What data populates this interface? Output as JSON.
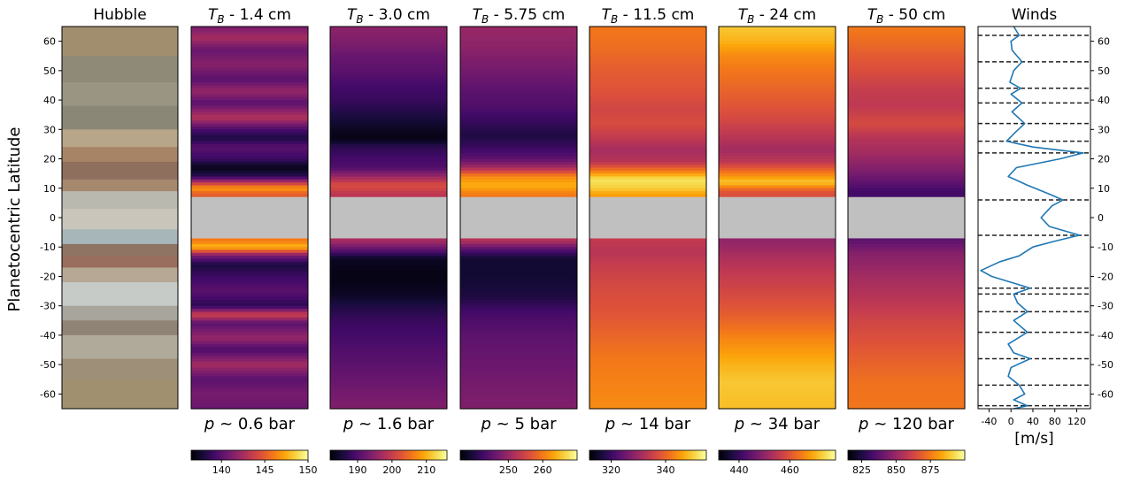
{
  "figure": {
    "ylabel": "Planetocentric Latitude",
    "ylim": [
      -65,
      65
    ],
    "yticks": [
      -60,
      -50,
      -40,
      -30,
      -20,
      -10,
      0,
      10,
      20,
      30,
      40,
      50,
      60
    ],
    "equator_gap": [
      -7,
      7
    ]
  },
  "hubble": {
    "title": "Hubble",
    "bands": [
      {
        "lat": [
          55,
          65
        ],
        "color": "#a08e6e"
      },
      {
        "lat": [
          46,
          55
        ],
        "color": "#8f8a78"
      },
      {
        "lat": [
          38,
          46
        ],
        "color": "#9a9482"
      },
      {
        "lat": [
          30,
          38
        ],
        "color": "#8a8776"
      },
      {
        "lat": [
          24,
          30
        ],
        "color": "#b8a68a"
      },
      {
        "lat": [
          19,
          24
        ],
        "color": "#a88466"
      },
      {
        "lat": [
          13,
          19
        ],
        "color": "#8e6e5c"
      },
      {
        "lat": [
          9,
          13
        ],
        "color": "#a6886e"
      },
      {
        "lat": [
          3,
          9
        ],
        "color": "#b9b9b0"
      },
      {
        "lat": [
          -4,
          3
        ],
        "color": "#c9c5bb"
      },
      {
        "lat": [
          -9,
          -4
        ],
        "color": "#a7b7b9"
      },
      {
        "lat": [
          -13,
          -9
        ],
        "color": "#8f7464"
      },
      {
        "lat": [
          -17,
          -13
        ],
        "color": "#9a6e5e"
      },
      {
        "lat": [
          -22,
          -17
        ],
        "color": "#b7a896"
      },
      {
        "lat": [
          -30,
          -22
        ],
        "color": "#c6cbc7"
      },
      {
        "lat": [
          -35,
          -30
        ],
        "color": "#a7a59c"
      },
      {
        "lat": [
          -40,
          -35
        ],
        "color": "#8f8375"
      },
      {
        "lat": [
          -48,
          -40
        ],
        "color": "#b0aa9a"
      },
      {
        "lat": [
          -55,
          -48
        ],
        "color": "#9e8f78"
      },
      {
        "lat": [
          -65,
          -55
        ],
        "color": "#a1906f"
      }
    ]
  },
  "chart_data": [
    {
      "type": "heatmap",
      "title": "T_B - 1.4 cm",
      "title_var": "T",
      "title_sub": "B",
      "title_rest": " - 1.4 cm",
      "pressure": "p ~ 0.6 bar",
      "clim": [
        136.5,
        150
      ],
      "cticks": [
        140,
        145,
        150
      ],
      "colormap": "inferno",
      "profile": [
        {
          "lat": 65,
          "t": 141
        },
        {
          "lat": 61,
          "t": 142.5
        },
        {
          "lat": 57,
          "t": 140.5
        },
        {
          "lat": 52,
          "t": 141.5
        },
        {
          "lat": 47,
          "t": 140
        },
        {
          "lat": 43,
          "t": 142
        },
        {
          "lat": 39,
          "t": 140
        },
        {
          "lat": 34,
          "t": 143
        },
        {
          "lat": 30,
          "t": 139.5
        },
        {
          "lat": 27,
          "t": 138
        },
        {
          "lat": 24,
          "t": 140
        },
        {
          "lat": 20,
          "t": 139
        },
        {
          "lat": 17,
          "t": 137
        },
        {
          "lat": 14,
          "t": 138.5
        },
        {
          "lat": 12,
          "t": 143
        },
        {
          "lat": 10,
          "t": 147
        },
        {
          "lat": 8,
          "t": 145
        },
        {
          "lat": -8,
          "t": 146
        },
        {
          "lat": -10,
          "t": 148
        },
        {
          "lat": -13,
          "t": 141
        },
        {
          "lat": -16,
          "t": 138
        },
        {
          "lat": -20,
          "t": 139
        },
        {
          "lat": -25,
          "t": 140
        },
        {
          "lat": -30,
          "t": 138.5
        },
        {
          "lat": -33,
          "t": 144
        },
        {
          "lat": -36,
          "t": 140
        },
        {
          "lat": -41,
          "t": 142
        },
        {
          "lat": -45,
          "t": 139.5
        },
        {
          "lat": -50,
          "t": 142.5
        },
        {
          "lat": -55,
          "t": 140
        },
        {
          "lat": -60,
          "t": 141
        },
        {
          "lat": -65,
          "t": 140.5
        }
      ]
    },
    {
      "type": "heatmap",
      "title": "T_B - 3.0 cm",
      "title_var": "T",
      "title_sub": "B",
      "title_rest": " - 3.0 cm",
      "pressure": "p ~ 1.6 bar",
      "clim": [
        182,
        216
      ],
      "cticks": [
        190,
        200,
        210
      ],
      "colormap": "inferno",
      "profile": [
        {
          "lat": 65,
          "t": 195
        },
        {
          "lat": 60,
          "t": 194
        },
        {
          "lat": 55,
          "t": 192
        },
        {
          "lat": 50,
          "t": 191
        },
        {
          "lat": 45,
          "t": 189
        },
        {
          "lat": 40,
          "t": 188
        },
        {
          "lat": 35,
          "t": 186
        },
        {
          "lat": 30,
          "t": 184
        },
        {
          "lat": 27,
          "t": 183
        },
        {
          "lat": 24,
          "t": 187
        },
        {
          "lat": 20,
          "t": 189
        },
        {
          "lat": 17,
          "t": 190
        },
        {
          "lat": 14,
          "t": 196
        },
        {
          "lat": 11,
          "t": 202
        },
        {
          "lat": 8,
          "t": 199
        },
        {
          "lat": -8,
          "t": 197
        },
        {
          "lat": -11,
          "t": 191
        },
        {
          "lat": -14,
          "t": 184
        },
        {
          "lat": -20,
          "t": 183
        },
        {
          "lat": -26,
          "t": 184
        },
        {
          "lat": -30,
          "t": 186
        },
        {
          "lat": -35,
          "t": 188
        },
        {
          "lat": -40,
          "t": 189
        },
        {
          "lat": -45,
          "t": 190
        },
        {
          "lat": -50,
          "t": 191
        },
        {
          "lat": -55,
          "t": 192
        },
        {
          "lat": -60,
          "t": 193
        },
        {
          "lat": -65,
          "t": 194
        }
      ]
    },
    {
      "type": "heatmap",
      "title": "T_B - 5.75 cm",
      "title_var": "T",
      "title_sub": "B",
      "title_rest": " - 5.75 cm",
      "pressure": "p ~ 5 bar",
      "clim": [
        236,
        270
      ],
      "cticks": [
        250,
        260
      ],
      "colormap": "inferno",
      "profile": [
        {
          "lat": 65,
          "t": 250
        },
        {
          "lat": 58,
          "t": 249
        },
        {
          "lat": 50,
          "t": 247
        },
        {
          "lat": 43,
          "t": 245
        },
        {
          "lat": 38,
          "t": 244
        },
        {
          "lat": 33,
          "t": 242
        },
        {
          "lat": 28,
          "t": 240
        },
        {
          "lat": 24,
          "t": 242
        },
        {
          "lat": 20,
          "t": 245
        },
        {
          "lat": 17,
          "t": 251
        },
        {
          "lat": 14,
          "t": 261
        },
        {
          "lat": 11,
          "t": 264
        },
        {
          "lat": 8,
          "t": 260
        },
        {
          "lat": -8,
          "t": 252
        },
        {
          "lat": -11,
          "t": 244
        },
        {
          "lat": -14,
          "t": 239
        },
        {
          "lat": -20,
          "t": 239
        },
        {
          "lat": -27,
          "t": 240
        },
        {
          "lat": -32,
          "t": 243
        },
        {
          "lat": -40,
          "t": 245
        },
        {
          "lat": -48,
          "t": 246
        },
        {
          "lat": -56,
          "t": 247
        },
        {
          "lat": -65,
          "t": 248
        }
      ]
    },
    {
      "type": "heatmap",
      "title": "T_B - 11.5 cm",
      "title_var": "T",
      "title_sub": "B",
      "title_rest": " - 11.5 cm",
      "pressure": "p ~ 14 bar",
      "clim": [
        312,
        355
      ],
      "cticks": [
        320,
        340
      ],
      "colormap": "inferno",
      "profile": [
        {
          "lat": 65,
          "t": 342
        },
        {
          "lat": 58,
          "t": 341
        },
        {
          "lat": 50,
          "t": 339
        },
        {
          "lat": 43,
          "t": 338
        },
        {
          "lat": 37,
          "t": 336
        },
        {
          "lat": 32,
          "t": 337
        },
        {
          "lat": 27,
          "t": 334
        },
        {
          "lat": 23,
          "t": 331
        },
        {
          "lat": 19,
          "t": 333
        },
        {
          "lat": 16,
          "t": 342
        },
        {
          "lat": 13,
          "t": 352
        },
        {
          "lat": 10,
          "t": 350
        },
        {
          "lat": 8,
          "t": 346
        },
        {
          "lat": -8,
          "t": 334
        },
        {
          "lat": -12,
          "t": 333
        },
        {
          "lat": -17,
          "t": 335
        },
        {
          "lat": -25,
          "t": 337
        },
        {
          "lat": -32,
          "t": 338
        },
        {
          "lat": -40,
          "t": 340
        },
        {
          "lat": -48,
          "t": 342
        },
        {
          "lat": -56,
          "t": 343
        },
        {
          "lat": -65,
          "t": 344
        }
      ]
    },
    {
      "type": "heatmap",
      "title": "T_B - 24 cm",
      "title_var": "T",
      "title_sub": "B",
      "title_rest": " - 24 cm",
      "pressure": "p ~ 34 bar",
      "clim": [
        432,
        478
      ],
      "cticks": [
        440,
        460
      ],
      "colormap": "inferno",
      "profile": [
        {
          "lat": 65,
          "t": 472
        },
        {
          "lat": 60,
          "t": 470
        },
        {
          "lat": 55,
          "t": 466
        },
        {
          "lat": 50,
          "t": 464
        },
        {
          "lat": 44,
          "t": 462
        },
        {
          "lat": 38,
          "t": 460
        },
        {
          "lat": 33,
          "t": 458
        },
        {
          "lat": 28,
          "t": 455
        },
        {
          "lat": 23,
          "t": 452
        },
        {
          "lat": 19,
          "t": 455
        },
        {
          "lat": 15,
          "t": 465
        },
        {
          "lat": 12,
          "t": 472
        },
        {
          "lat": 9,
          "t": 460
        },
        {
          "lat": -8,
          "t": 450
        },
        {
          "lat": -13,
          "t": 453
        },
        {
          "lat": -20,
          "t": 456
        },
        {
          "lat": -28,
          "t": 459
        },
        {
          "lat": -35,
          "t": 462
        },
        {
          "lat": -42,
          "t": 466
        },
        {
          "lat": -50,
          "t": 470
        },
        {
          "lat": -56,
          "t": 472
        },
        {
          "lat": -65,
          "t": 471
        }
      ]
    },
    {
      "type": "heatmap",
      "title": "T_B - 50 cm",
      "title_var": "T",
      "title_sub": "B",
      "title_rest": " - 50 cm",
      "pressure": "p ~ 120 bar",
      "clim": [
        815,
        900
      ],
      "cticks": [
        825,
        850,
        875
      ],
      "colormap": "inferno",
      "profile": [
        {
          "lat": 65,
          "t": 875
        },
        {
          "lat": 60,
          "t": 872
        },
        {
          "lat": 55,
          "t": 868
        },
        {
          "lat": 50,
          "t": 865
        },
        {
          "lat": 44,
          "t": 860
        },
        {
          "lat": 38,
          "t": 858
        },
        {
          "lat": 32,
          "t": 864
        },
        {
          "lat": 27,
          "t": 856
        },
        {
          "lat": 22,
          "t": 852
        },
        {
          "lat": 17,
          "t": 846
        },
        {
          "lat": 13,
          "t": 840
        },
        {
          "lat": 9,
          "t": 832
        },
        {
          "lat": -8,
          "t": 838
        },
        {
          "lat": -12,
          "t": 846
        },
        {
          "lat": -20,
          "t": 852
        },
        {
          "lat": -28,
          "t": 857
        },
        {
          "lat": -35,
          "t": 862
        },
        {
          "lat": -42,
          "t": 866
        },
        {
          "lat": -50,
          "t": 870
        },
        {
          "lat": -56,
          "t": 873
        },
        {
          "lat": -65,
          "t": 874
        }
      ]
    },
    {
      "type": "line",
      "title": "Winds",
      "xlabel": "[m/s]",
      "xlim": [
        -60,
        145
      ],
      "xticks": [
        -40,
        0,
        40,
        80,
        120
      ],
      "ylim": [
        -65,
        65
      ],
      "color": "#1f77b4",
      "jet_latitudes": [
        62,
        53,
        44,
        39,
        32,
        26,
        22,
        6,
        -6,
        -24,
        -26,
        -32,
        -39,
        -48,
        -57,
        -64
      ],
      "profile": [
        {
          "lat": 65,
          "u": 5
        },
        {
          "lat": 62,
          "u": 15
        },
        {
          "lat": 60,
          "u": 0
        },
        {
          "lat": 57,
          "u": 2
        },
        {
          "lat": 53,
          "u": 20
        },
        {
          "lat": 50,
          "u": 5
        },
        {
          "lat": 46,
          "u": -2
        },
        {
          "lat": 44,
          "u": 18
        },
        {
          "lat": 42,
          "u": 0
        },
        {
          "lat": 39,
          "u": 20
        },
        {
          "lat": 36,
          "u": 2
        },
        {
          "lat": 32,
          "u": 25
        },
        {
          "lat": 29,
          "u": 8
        },
        {
          "lat": 26,
          "u": -8
        },
        {
          "lat": 24,
          "u": 40
        },
        {
          "lat": 22,
          "u": 132
        },
        {
          "lat": 20,
          "u": 90
        },
        {
          "lat": 17,
          "u": 10
        },
        {
          "lat": 14,
          "u": -5
        },
        {
          "lat": 11,
          "u": 30
        },
        {
          "lat": 8,
          "u": 70
        },
        {
          "lat": 6,
          "u": 95
        },
        {
          "lat": 4,
          "u": 75
        },
        {
          "lat": 0,
          "u": 55
        },
        {
          "lat": -3,
          "u": 70
        },
        {
          "lat": -6,
          "u": 125
        },
        {
          "lat": -8,
          "u": 80
        },
        {
          "lat": -10,
          "u": 40
        },
        {
          "lat": -13,
          "u": 15
        },
        {
          "lat": -15,
          "u": -20
        },
        {
          "lat": -18,
          "u": -55
        },
        {
          "lat": -20,
          "u": -35
        },
        {
          "lat": -22,
          "u": 0
        },
        {
          "lat": -24,
          "u": 35
        },
        {
          "lat": -26,
          "u": 5
        },
        {
          "lat": -29,
          "u": 12
        },
        {
          "lat": -32,
          "u": 30
        },
        {
          "lat": -35,
          "u": 5
        },
        {
          "lat": -39,
          "u": 30
        },
        {
          "lat": -43,
          "u": -5
        },
        {
          "lat": -46,
          "u": 5
        },
        {
          "lat": -48,
          "u": 35
        },
        {
          "lat": -51,
          "u": 0
        },
        {
          "lat": -54,
          "u": -5
        },
        {
          "lat": -57,
          "u": 15
        },
        {
          "lat": -60,
          "u": 25
        },
        {
          "lat": -62,
          "u": 5
        },
        {
          "lat": -64,
          "u": 30
        },
        {
          "lat": -65,
          "u": 5
        }
      ]
    }
  ]
}
